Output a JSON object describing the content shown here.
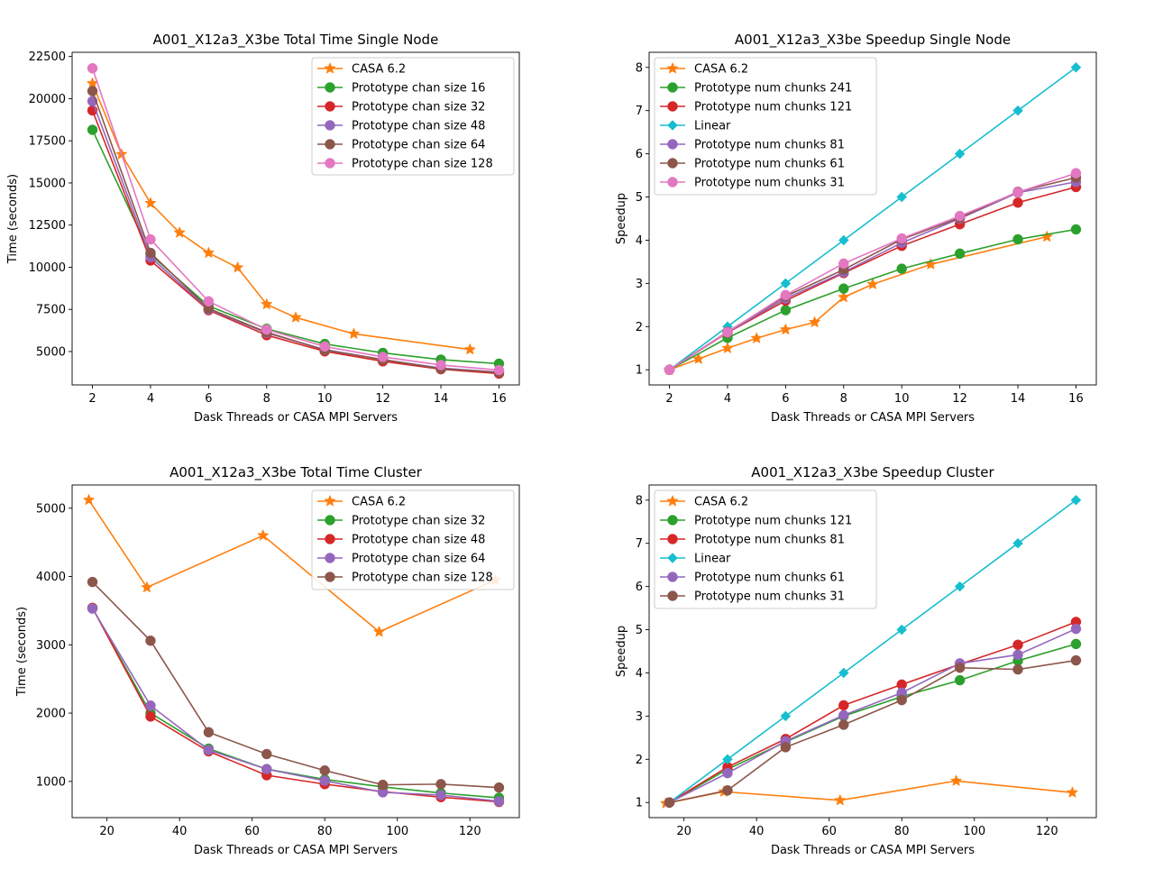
{
  "chart_data": [
    {
      "type": "line",
      "title": "A001_X12a3_X3be Total Time Single Node",
      "xlabel": "Dask Threads or CASA MPI Servers",
      "ylabel": "Time (seconds)",
      "xlim": [
        1.3,
        16.7
      ],
      "ylim": [
        3020,
        22750
      ],
      "xticks": [
        2,
        4,
        6,
        8,
        10,
        12,
        14,
        16
      ],
      "yticks": [
        5000,
        7500,
        10000,
        12500,
        15000,
        17500,
        20000,
        22500
      ],
      "legend": "top-right",
      "series": [
        {
          "name": "CASA 6.2",
          "color": "#ff7f0e",
          "marker": "star",
          "x": [
            2,
            3,
            4,
            5,
            6,
            7,
            8,
            9,
            11,
            15
          ],
          "y": [
            20900,
            16700,
            13800,
            12050,
            10850,
            9980,
            7800,
            7020,
            6050,
            5120
          ]
        },
        {
          "name": "Prototype chan size  16",
          "color": "#2ca02c",
          "marker": "circle",
          "x": [
            2,
            4,
            6,
            8,
            10,
            12,
            14,
            16
          ],
          "y": [
            18150,
            10750,
            7700,
            6350,
            5450,
            4920,
            4520,
            4280
          ]
        },
        {
          "name": "Prototype chan size  32",
          "color": "#d62728",
          "marker": "circle",
          "x": [
            2,
            4,
            6,
            8,
            10,
            12,
            14,
            16
          ],
          "y": [
            19300,
            10400,
            7450,
            5970,
            5010,
            4420,
            3950,
            3690
          ]
        },
        {
          "name": "Prototype chan size  48",
          "color": "#9467bd",
          "marker": "circle",
          "x": [
            2,
            4,
            6,
            8,
            10,
            12,
            14,
            16
          ],
          "y": [
            19850,
            10600,
            7500,
            6100,
            5120,
            4520,
            4020,
            3780
          ]
        },
        {
          "name": "Prototype chan size  64",
          "color": "#8c564b",
          "marker": "circle",
          "x": [
            2,
            4,
            6,
            8,
            10,
            12,
            14,
            16
          ],
          "y": [
            20450,
            10850,
            7550,
            6150,
            5080,
            4520,
            3980,
            3760
          ]
        },
        {
          "name": "Prototype chan size  128",
          "color": "#e377c2",
          "marker": "circle",
          "x": [
            2,
            4,
            6,
            8,
            10,
            12,
            14,
            16
          ],
          "y": [
            21800,
            11650,
            7980,
            6300,
            5300,
            4680,
            4200,
            3900
          ]
        }
      ]
    },
    {
      "type": "line",
      "title": "A001_X12a3_X3be Speedup Single Node",
      "xlabel": "Dask Threads or CASA MPI Servers",
      "ylabel": "Speedup",
      "xlim": [
        1.3,
        16.7
      ],
      "ylim": [
        0.65,
        8.35
      ],
      "xticks": [
        2,
        4,
        6,
        8,
        10,
        12,
        14,
        16
      ],
      "yticks": [
        1,
        2,
        3,
        4,
        5,
        6,
        7,
        8
      ],
      "legend": "top-left",
      "series": [
        {
          "name": "CASA 6.2",
          "color": "#ff7f0e",
          "marker": "star",
          "x": [
            2,
            3,
            4,
            5,
            6,
            7,
            8,
            9,
            11,
            15
          ],
          "y": [
            1.0,
            1.25,
            1.5,
            1.73,
            1.93,
            2.1,
            2.68,
            2.98,
            3.44,
            4.08
          ]
        },
        {
          "name": "Prototype num chunks 241",
          "color": "#2ca02c",
          "marker": "circle",
          "x": [
            2,
            4,
            6,
            8,
            10,
            12,
            14,
            16
          ],
          "y": [
            1.0,
            1.74,
            2.38,
            2.88,
            3.34,
            3.69,
            4.02,
            4.25
          ]
        },
        {
          "name": "Prototype num chunks 121",
          "color": "#d62728",
          "marker": "circle",
          "x": [
            2,
            4,
            6,
            8,
            10,
            12,
            14,
            16
          ],
          "y": [
            1.0,
            1.86,
            2.6,
            3.24,
            3.87,
            4.37,
            4.87,
            5.23
          ]
        },
        {
          "name": "Linear",
          "color": "#17becf",
          "marker": "diamond",
          "x": [
            2,
            4,
            6,
            8,
            10,
            12,
            14,
            16
          ],
          "y": [
            1,
            2,
            3,
            4,
            5,
            6,
            7,
            8
          ]
        },
        {
          "name": "Prototype num chunks 81",
          "color": "#9467bd",
          "marker": "circle",
          "x": [
            2,
            4,
            6,
            8,
            10,
            12,
            14,
            16
          ],
          "y": [
            1.0,
            1.87,
            2.65,
            3.26,
            3.94,
            4.5,
            5.1,
            5.35
          ]
        },
        {
          "name": "Prototype num chunks 61",
          "color": "#8c564b",
          "marker": "circle",
          "x": [
            2,
            4,
            6,
            8,
            10,
            12,
            14,
            16
          ],
          "y": [
            1.0,
            1.88,
            2.7,
            3.32,
            4.02,
            4.52,
            5.12,
            5.45
          ]
        },
        {
          "name": "Prototype num chunks 31",
          "color": "#e377c2",
          "marker": "circle",
          "x": [
            2,
            4,
            6,
            8,
            10,
            12,
            14,
            16
          ],
          "y": [
            1.0,
            1.87,
            2.73,
            3.46,
            4.04,
            4.56,
            5.11,
            5.55
          ]
        }
      ]
    },
    {
      "type": "line",
      "title": "A001_X12a3_X3be Total Time Cluster",
      "xlabel": "Dask Threads or CASA MPI Servers",
      "ylabel": "Time (seconds)",
      "xlim": [
        10.4,
        133.6
      ],
      "ylim": [
        470,
        5340
      ],
      "xticks": [
        20,
        40,
        60,
        80,
        100,
        120
      ],
      "yticks": [
        1000,
        2000,
        3000,
        4000,
        5000
      ],
      "legend": "top-right",
      "series": [
        {
          "name": "CASA 6.2",
          "color": "#ff7f0e",
          "marker": "star",
          "x": [
            15,
            31,
            63,
            95,
            127
          ],
          "y": [
            5120,
            3840,
            4600,
            3190,
            3950
          ]
        },
        {
          "name": "Prototype chan size  32",
          "color": "#2ca02c",
          "marker": "circle",
          "x": [
            16,
            32,
            48,
            64,
            80,
            96,
            112,
            128
          ],
          "y": [
            3540,
            2000,
            1480,
            1180,
            1030,
            920,
            830,
            760
          ]
        },
        {
          "name": "Prototype chan size  48",
          "color": "#d62728",
          "marker": "circle",
          "x": [
            16,
            32,
            48,
            64,
            80,
            96,
            112,
            128
          ],
          "y": [
            3540,
            1950,
            1440,
            1090,
            960,
            850,
            770,
            700
          ]
        },
        {
          "name": "Prototype chan size  64",
          "color": "#9467bd",
          "marker": "circle",
          "x": [
            16,
            32,
            48,
            64,
            80,
            96,
            112,
            128
          ],
          "y": [
            3530,
            2110,
            1460,
            1180,
            1010,
            840,
            800,
            710
          ]
        },
        {
          "name": "Prototype chan size  128",
          "color": "#8c564b",
          "marker": "circle",
          "x": [
            16,
            32,
            48,
            64,
            80,
            96,
            112,
            128
          ],
          "y": [
            3920,
            3060,
            1720,
            1400,
            1160,
            950,
            960,
            910
          ]
        }
      ]
    },
    {
      "type": "line",
      "title": "A001_X12a3_X3be Speedup Cluster",
      "xlabel": "Dask Threads or CASA MPI Servers",
      "ylabel": "Speedup",
      "xlim": [
        10.4,
        133.6
      ],
      "ylim": [
        0.65,
        8.35
      ],
      "xticks": [
        20,
        40,
        60,
        80,
        100,
        120
      ],
      "yticks": [
        1,
        2,
        3,
        4,
        5,
        6,
        7,
        8
      ],
      "legend": "top-left",
      "series": [
        {
          "name": "CASA 6.2",
          "color": "#ff7f0e",
          "marker": "star",
          "x": [
            15,
            31,
            63,
            95,
            127
          ],
          "y": [
            0.98,
            1.25,
            1.05,
            1.5,
            1.23
          ]
        },
        {
          "name": "Prototype num chunks 121",
          "color": "#2ca02c",
          "marker": "circle",
          "x": [
            16,
            32,
            48,
            64,
            80,
            96,
            112,
            128
          ],
          "y": [
            1.0,
            1.77,
            2.4,
            3.0,
            3.45,
            3.83,
            4.28,
            4.67
          ]
        },
        {
          "name": "Prototype num chunks 81",
          "color": "#d62728",
          "marker": "circle",
          "x": [
            16,
            32,
            48,
            64,
            80,
            96,
            112,
            128
          ],
          "y": [
            1.0,
            1.82,
            2.47,
            3.25,
            3.73,
            4.2,
            4.65,
            5.18
          ]
        },
        {
          "name": "Linear",
          "color": "#17becf",
          "marker": "diamond",
          "x": [
            16,
            32,
            48,
            64,
            80,
            96,
            112,
            128
          ],
          "y": [
            1,
            2,
            3,
            4,
            5,
            6,
            7,
            8
          ]
        },
        {
          "name": "Prototype num chunks 61",
          "color": "#9467bd",
          "marker": "circle",
          "x": [
            16,
            32,
            48,
            64,
            80,
            96,
            112,
            128
          ],
          "y": [
            1.0,
            1.68,
            2.42,
            3.02,
            3.54,
            4.22,
            4.42,
            5.02
          ]
        },
        {
          "name": "Prototype num chunks 31",
          "color": "#8c564b",
          "marker": "circle",
          "x": [
            16,
            32,
            48,
            64,
            80,
            96,
            112,
            128
          ],
          "y": [
            1.0,
            1.28,
            2.28,
            2.8,
            3.37,
            4.12,
            4.08,
            4.29
          ]
        }
      ]
    }
  ]
}
